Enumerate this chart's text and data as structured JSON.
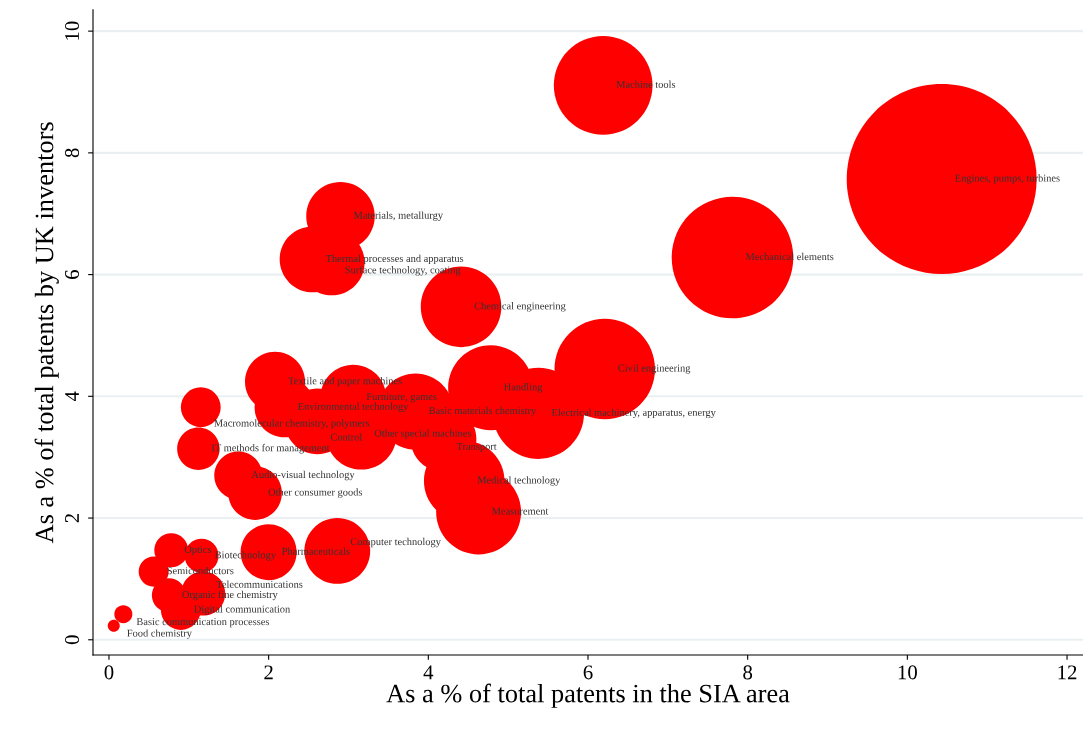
{
  "chart_data": {
    "type": "bubble",
    "xlabel": "As a % of total patents in the SIA area",
    "ylabel": "As a % of total patents by UK inventors",
    "xlim": [
      -0.2,
      12.2
    ],
    "ylim": [
      -0.25,
      10.35
    ],
    "xticks": [
      0,
      2,
      4,
      6,
      8,
      10,
      12
    ],
    "yticks": [
      0,
      2,
      4,
      6,
      8,
      10
    ],
    "grid": "y",
    "marker": "circle",
    "legend": false,
    "series": [
      {
        "color": "#ff0000",
        "x": [
          6.19,
          10.43,
          7.81,
          2.9,
          2.55,
          2.79,
          4.41,
          6.21,
          4.78,
          5.38,
          3.84,
          3.06,
          2.08,
          2.2,
          1.15,
          2.61,
          3.16,
          4.19,
          4.45,
          4.63,
          1.12,
          1.62,
          1.83,
          2.0,
          2.86,
          0.78,
          1.16,
          0.56,
          0.75,
          1.18,
          0.9,
          0.18,
          0.06
        ],
        "values": [
          9.11,
          7.57,
          6.28,
          6.96,
          6.25,
          6.2,
          5.47,
          4.45,
          4.14,
          3.72,
          3.75,
          3.98,
          4.24,
          3.82,
          3.82,
          3.59,
          3.38,
          3.3,
          2.61,
          2.1,
          3.14,
          2.7,
          2.41,
          1.44,
          1.46,
          1.47,
          1.38,
          1.12,
          0.73,
          0.76,
          0.49,
          0.42,
          0.23
        ],
        "sizes": [
          0.27,
          1,
          0.41,
          0.13,
          0.12,
          0.12,
          0.18,
          0.28,
          0.2,
          0.23,
          0.16,
          0.12,
          0.1,
          0.1,
          0.044,
          0.12,
          0.14,
          0.12,
          0.18,
          0.2,
          0.05,
          0.064,
          0.08,
          0.087,
          0.12,
          0.032,
          0.032,
          0.025,
          0.032,
          0.054,
          0.044,
          0.009,
          0.004
        ]
      }
    ],
    "annotations": [
      {
        "text": "Machine tools",
        "x": 6.19,
        "y": 9.11
      },
      {
        "text": "Engines, pumps, turbines",
        "x": 10.43,
        "y": 7.57
      },
      {
        "text": "Mechanical elements",
        "x": 7.81,
        "y": 6.28
      },
      {
        "text": "Materials, metallurgy",
        "x": 2.9,
        "y": 6.96
      },
      {
        "text": "Thermal processes and apparatus",
        "x": 2.55,
        "y": 6.25
      },
      {
        "text": "Surface technology, coating",
        "x": 2.79,
        "y": 6.2
      },
      {
        "text": "Chemical engineering",
        "x": 4.41,
        "y": 5.47
      },
      {
        "text": "Civil engineering",
        "x": 6.21,
        "y": 4.45
      },
      {
        "text": "Handling",
        "x": 4.78,
        "y": 4.14
      },
      {
        "text": "Electrical machinery, apparatus, energy",
        "x": 5.38,
        "y": 3.72
      },
      {
        "text": "Basic materials chemistry",
        "x": 3.84,
        "y": 3.75
      },
      {
        "text": "Furniture, games",
        "x": 3.06,
        "y": 3.98
      },
      {
        "text": "Textile and paper machines",
        "x": 2.08,
        "y": 4.24
      },
      {
        "text": "Environmental technology",
        "x": 2.2,
        "y": 3.82
      },
      {
        "text": "Macromolecular chemistry, polymers",
        "x": 1.15,
        "y": 3.82
      },
      {
        "text": "Control",
        "x": 2.61,
        "y": 3.59
      },
      {
        "text": "Other special machines",
        "x": 3.16,
        "y": 3.38
      },
      {
        "text": "Transport",
        "x": 4.19,
        "y": 3.3
      },
      {
        "text": "Medical technology",
        "x": 4.45,
        "y": 2.61
      },
      {
        "text": "Measurement",
        "x": 4.63,
        "y": 2.1
      },
      {
        "text": "IT methods for management",
        "x": 1.12,
        "y": 3.14
      },
      {
        "text": "Audio-visual technology",
        "x": 1.62,
        "y": 2.7
      },
      {
        "text": "Other consumer goods",
        "x": 1.83,
        "y": 2.41
      },
      {
        "text": "Pharmaceuticals",
        "x": 2.0,
        "y": 1.44
      },
      {
        "text": "Computer technology",
        "x": 2.86,
        "y": 1.46
      },
      {
        "text": "Optics",
        "x": 0.78,
        "y": 1.47
      },
      {
        "text": "Biotechnology",
        "x": 1.16,
        "y": 1.38
      },
      {
        "text": "Semiconductors",
        "x": 0.56,
        "y": 1.12
      },
      {
        "text": "Organic fine chemistry",
        "x": 0.75,
        "y": 0.73
      },
      {
        "text": "Telecommunications",
        "x": 1.18,
        "y": 0.76
      },
      {
        "text": "Digital communication",
        "x": 0.9,
        "y": 0.49
      },
      {
        "text": "Basic communication processes",
        "x": 0.18,
        "y": 0.42
      },
      {
        "text": "Food chemistry",
        "x": 0.06,
        "y": 0.23
      }
    ]
  }
}
